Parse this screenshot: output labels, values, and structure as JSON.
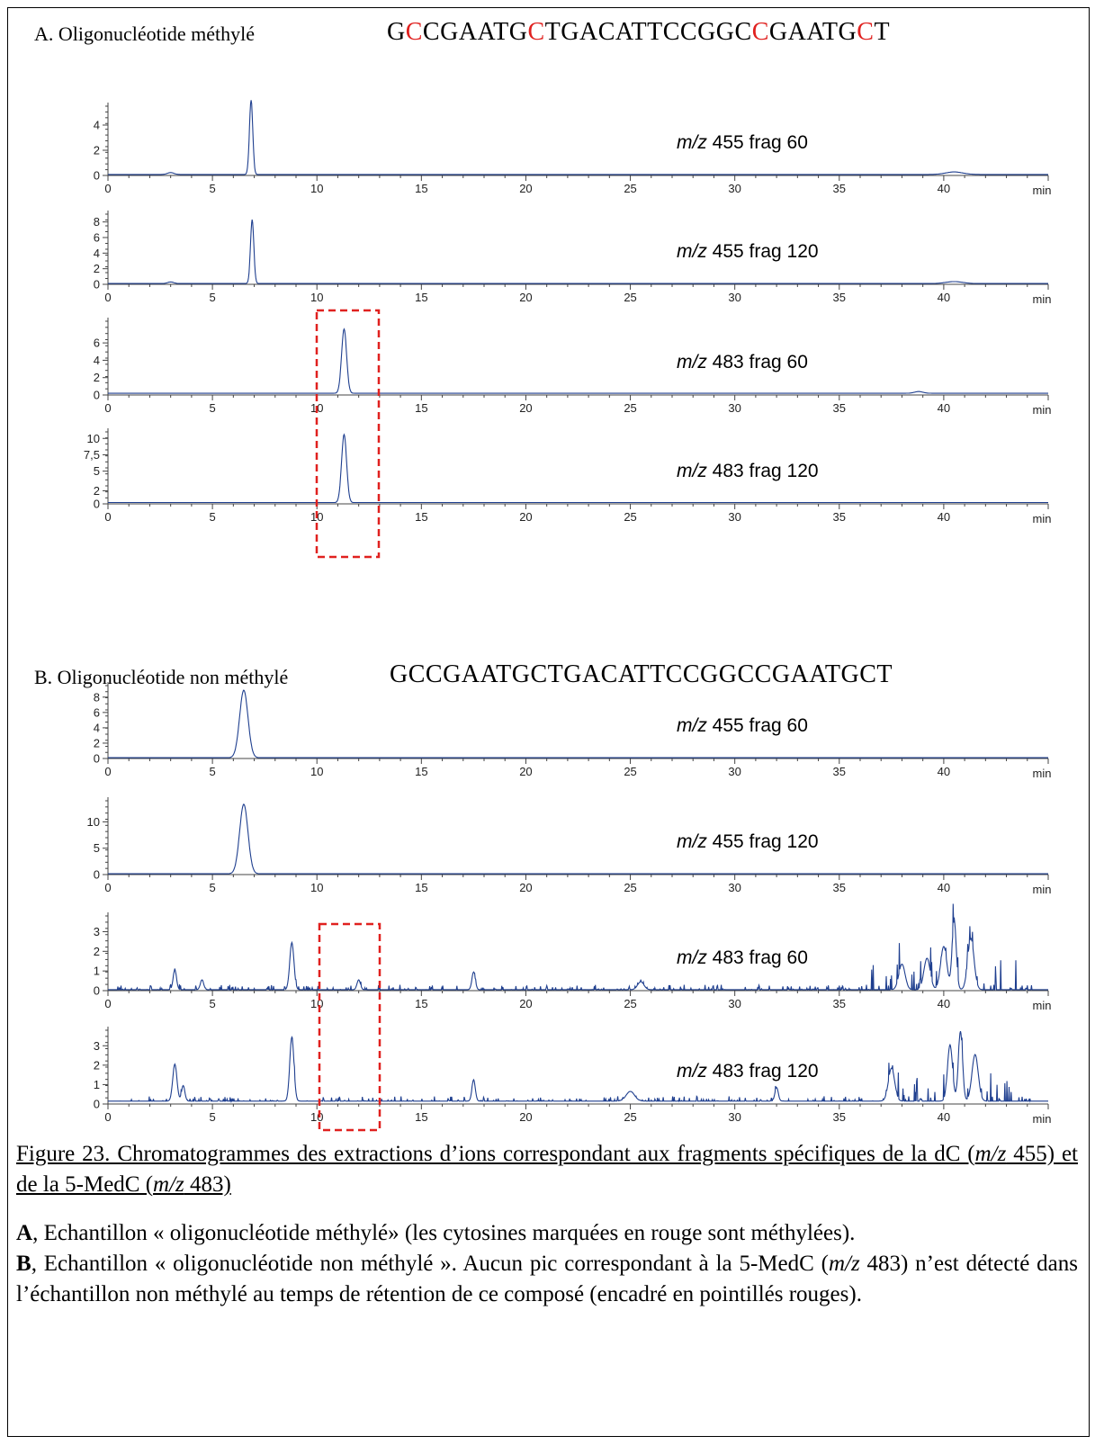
{
  "section_a": {
    "title": "A. Oligonucléotide méthylé",
    "sequence": [
      {
        "t": "G",
        "m": false
      },
      {
        "t": "C",
        "m": true
      },
      {
        "t": "CGAATG",
        "m": false
      },
      {
        "t": "C",
        "m": true
      },
      {
        "t": "TGACATTCCGGC",
        "m": false
      },
      {
        "t": "C",
        "m": true
      },
      {
        "t": "GAATG",
        "m": false
      },
      {
        "t": "C",
        "m": true
      },
      {
        "t": "T",
        "m": false
      }
    ]
  },
  "section_b": {
    "title": "B. Oligonucléotide non méthylé",
    "sequence": [
      {
        "t": "GCCGAATGCTGACATTCCGGCCGAATGCT",
        "m": false
      }
    ]
  },
  "colors": {
    "trace": "#1f3f8f",
    "highlight": "#e0211f",
    "methylated": "#e0211f"
  },
  "chart_data": [
    {
      "type": "line",
      "panel": "A",
      "xunit": "min",
      "xlim": [
        0,
        45
      ],
      "ylim": [
        0,
        5.5
      ],
      "label": {
        "mz": "m/z",
        "value": "455 frag 60"
      },
      "yticks": [
        "0",
        "2",
        "4"
      ],
      "ytick_values": [
        0,
        2,
        4
      ],
      "peaks": [
        {
          "x": 6.85,
          "y": 5.9,
          "w": 0.08
        },
        {
          "x": 3.0,
          "y": 0.15,
          "w": 0.15
        },
        {
          "x": 40.5,
          "y": 0.2,
          "w": 0.4
        }
      ],
      "baseline": 0.08,
      "noise": 0
    },
    {
      "type": "line",
      "panel": "A",
      "xunit": "min",
      "xlim": [
        0,
        45
      ],
      "ylim": [
        0,
        9
      ],
      "label": {
        "mz": "m/z",
        "value": "455 frag 120"
      },
      "yticks": [
        "0",
        "2",
        "4",
        "6",
        "8"
      ],
      "ytick_values": [
        0,
        2,
        4,
        6,
        8
      ],
      "peaks": [
        {
          "x": 6.9,
          "y": 8.2,
          "w": 0.08
        },
        {
          "x": 3.0,
          "y": 0.2,
          "w": 0.15
        },
        {
          "x": 40.5,
          "y": 0.25,
          "w": 0.4
        }
      ],
      "baseline": 0.1,
      "noise": 0
    },
    {
      "type": "line",
      "panel": "A",
      "xunit": "min",
      "xlim": [
        0,
        45
      ],
      "ylim": [
        0,
        8.5
      ],
      "label": {
        "mz": "m/z",
        "value": "483 frag 60"
      },
      "yticks": [
        "0",
        "2",
        "4",
        "6"
      ],
      "ytick_values": [
        0,
        2,
        4,
        6
      ],
      "peaks": [
        {
          "x": 11.3,
          "y": 7.4,
          "w": 0.12
        },
        {
          "x": 38.8,
          "y": 0.2,
          "w": 0.2
        }
      ],
      "baseline": 0.2,
      "noise": 0
    },
    {
      "type": "line",
      "panel": "A",
      "xunit": "min",
      "xlim": [
        0,
        45
      ],
      "ylim": [
        0,
        11
      ],
      "label": {
        "mz": "m/z",
        "value": "483 frag 120"
      },
      "yticks": [
        "0",
        "2",
        "5",
        "7,5",
        "10"
      ],
      "ytick_values": [
        0,
        2,
        5,
        7.5,
        10
      ],
      "peaks": [
        {
          "x": 11.3,
          "y": 10.4,
          "w": 0.12
        }
      ],
      "baseline": 0.2,
      "noise": 0
    },
    {
      "type": "line",
      "panel": "B",
      "xunit": "min",
      "xlim": [
        0,
        45
      ],
      "ylim": [
        0,
        9.5
      ],
      "label": {
        "mz": "m/z",
        "value": "455 frag 60"
      },
      "yticks": [
        "0",
        "2",
        "4",
        "6",
        "8"
      ],
      "ytick_values": [
        0,
        2,
        4,
        6,
        8
      ],
      "peaks": [
        {
          "x": 6.5,
          "y": 8.8,
          "w": 0.2
        }
      ],
      "baseline": 0.1,
      "noise": 0
    },
    {
      "type": "line",
      "panel": "B",
      "xunit": "min",
      "xlim": [
        0,
        45
      ],
      "ylim": [
        0,
        14
      ],
      "label": {
        "mz": "m/z",
        "value": "455 frag 120"
      },
      "yticks": [
        "0",
        "5",
        "10"
      ],
      "ytick_values": [
        0,
        5,
        10
      ],
      "peaks": [
        {
          "x": 6.5,
          "y": 13.2,
          "w": 0.2
        }
      ],
      "baseline": 0.15,
      "noise": 0
    },
    {
      "type": "line",
      "panel": "B",
      "xunit": "min",
      "xlim": [
        0,
        45
      ],
      "ylim": [
        0,
        3.8
      ],
      "label": {
        "mz": "m/z",
        "value": "483 frag 60"
      },
      "yticks": [
        "0",
        "1",
        "2",
        "3"
      ],
      "ytick_values": [
        0,
        1,
        2,
        3
      ],
      "peaks": [
        {
          "x": 3.2,
          "y": 1.0,
          "w": 0.08
        },
        {
          "x": 4.5,
          "y": 0.5,
          "w": 0.08
        },
        {
          "x": 8.8,
          "y": 2.4,
          "w": 0.1
        },
        {
          "x": 12.0,
          "y": 0.5,
          "w": 0.08
        },
        {
          "x": 17.5,
          "y": 0.9,
          "w": 0.08
        },
        {
          "x": 25.5,
          "y": 0.4,
          "w": 0.15
        },
        {
          "x": 38.0,
          "y": 1.3,
          "w": 0.15
        },
        {
          "x": 40.0,
          "y": 2.2,
          "w": 0.15
        },
        {
          "x": 40.5,
          "y": 3.5,
          "w": 0.1
        },
        {
          "x": 41.3,
          "y": 2.6,
          "w": 0.15
        },
        {
          "x": 39.2,
          "y": 1.6,
          "w": 0.15
        }
      ],
      "baseline": 0.05,
      "noise": 0.25,
      "noise_zone": [
        36.5,
        43.5
      ],
      "noise_zone_amp": 1.6
    },
    {
      "type": "line",
      "panel": "B",
      "xunit": "min",
      "xlim": [
        0,
        45
      ],
      "ylim": [
        0,
        3.8
      ],
      "label": {
        "mz": "m/z",
        "value": "483 frag 120"
      },
      "yticks": [
        "0",
        "1",
        "2",
        "3"
      ],
      "ytick_values": [
        0,
        1,
        2,
        3
      ],
      "peaks": [
        {
          "x": 3.2,
          "y": 1.9,
          "w": 0.1
        },
        {
          "x": 3.6,
          "y": 0.8,
          "w": 0.08
        },
        {
          "x": 8.8,
          "y": 3.3,
          "w": 0.1
        },
        {
          "x": 17.5,
          "y": 1.1,
          "w": 0.08
        },
        {
          "x": 25.0,
          "y": 0.5,
          "w": 0.2
        },
        {
          "x": 32.0,
          "y": 0.7,
          "w": 0.08
        },
        {
          "x": 37.5,
          "y": 1.7,
          "w": 0.15
        },
        {
          "x": 40.3,
          "y": 2.9,
          "w": 0.12
        },
        {
          "x": 40.8,
          "y": 3.6,
          "w": 0.1
        },
        {
          "x": 41.5,
          "y": 2.4,
          "w": 0.15
        }
      ],
      "baseline": 0.15,
      "noise": 0.25,
      "noise_zone": [
        36.5,
        43.5
      ],
      "noise_zone_amp": 1.5
    }
  ],
  "x_axis": {
    "ticks": [
      "0",
      "5",
      "10",
      "15",
      "20",
      "25",
      "30",
      "35",
      "40"
    ],
    "tick_values": [
      0,
      5,
      10,
      15,
      20,
      25,
      30,
      35,
      40
    ],
    "unit_label": "min"
  },
  "caption": {
    "title": "Figure 23. Chromatogrammes des extractions d’ions correspondant aux fragments spécifiques de la dC (m/z 455) et de la 5-MedC (m/z 483)",
    "title_parts": [
      "Figure 23. Chromatogrammes des extractions d’ions correspondant aux fragments spécifiques de la dC (",
      "m/z",
      " 455) et de la 5-MedC (",
      "m/z",
      " 483)"
    ],
    "a_label": "A",
    "a_text": ", Echantillon « oligonucléotide méthylé» (les cytosines marquées en rouge sont méthylées).",
    "b_label": "B",
    "b_text_1": ", Echantillon « oligonucléotide non méthylé ». Aucun pic correspondant à la 5-MedC (",
    "b_mz": "m/z",
    "b_text_2": " 483) n’est détecté dans l’échantillon non méthylé au temps de rétention de ce composé (encadré en pointillés rouges)."
  }
}
